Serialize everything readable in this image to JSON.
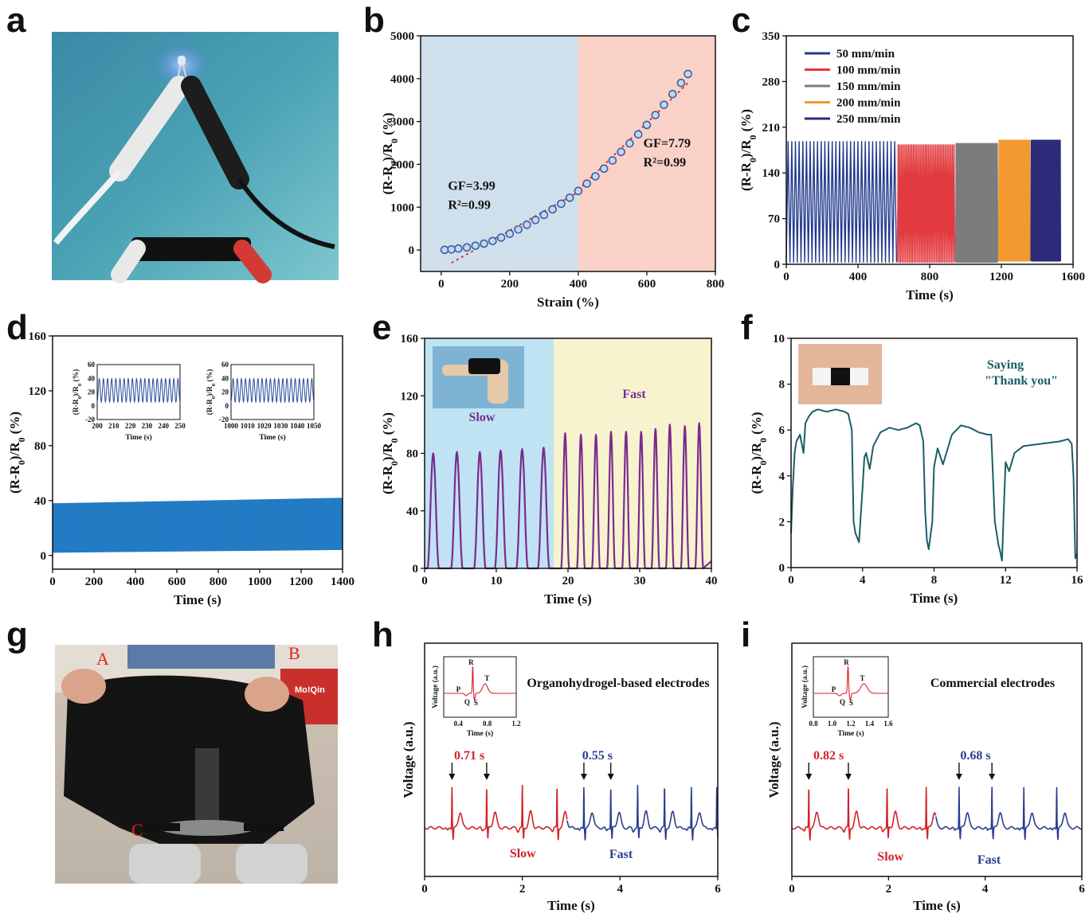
{
  "panels": {
    "a": "a",
    "b": "b",
    "c": "c",
    "d": "d",
    "e": "e",
    "f": "f",
    "g": "g",
    "h": "h",
    "i": "i"
  },
  "photo_g": {
    "label_a": "A",
    "label_b": "B",
    "label_c": "C",
    "sign_text": "Mo!Qin"
  },
  "chart_data": [
    {
      "id": "b",
      "type": "scatter",
      "xlabel": "Strain (%)",
      "ylabel": "(R-R0)/R0 (%)",
      "xlim": [
        -60,
        800
      ],
      "ylim": [
        -500,
        5000
      ],
      "xticks": [
        "0",
        "200",
        "400",
        "600",
        "800"
      ],
      "yticks": [
        "0",
        "1000",
        "2000",
        "3000",
        "4000",
        "5000"
      ],
      "regions": [
        {
          "from": -60,
          "to": 400,
          "color": "#cfe0ec"
        },
        {
          "from": 400,
          "to": 800,
          "color": "#f9d1c6"
        }
      ],
      "x": [
        10,
        30,
        50,
        75,
        100,
        125,
        150,
        175,
        200,
        225,
        250,
        275,
        300,
        325,
        350,
        375,
        400,
        425,
        450,
        475,
        500,
        525,
        550,
        575,
        600,
        625,
        650,
        675,
        700,
        720
      ],
      "y": [
        5,
        15,
        35,
        60,
        100,
        150,
        210,
        290,
        380,
        480,
        590,
        700,
        820,
        950,
        1080,
        1220,
        1380,
        1550,
        1720,
        1900,
        2090,
        2290,
        2490,
        2700,
        2920,
        3150,
        3390,
        3640,
        3900,
        4110
      ],
      "fits": [
        {
          "x": [
            30,
            400
          ],
          "y": [
            -300,
            1350
          ],
          "color": "#e0322b"
        },
        {
          "x": [
            400,
            720
          ],
          "y": [
            1400,
            3900
          ],
          "color": "#e0322b"
        }
      ],
      "annotations": [
        {
          "lines": [
            "GF=3.99",
            "R²=0.99"
          ],
          "x": 20,
          "y": 1400
        },
        {
          "lines": [
            "GF=7.79",
            "R²=0.99"
          ],
          "x": 590,
          "y": 2400
        }
      ],
      "marker_color": "#3a5ea8"
    },
    {
      "id": "c",
      "type": "line",
      "xlabel": "Time (s)",
      "ylabel": "(R-R0)/R0 (%)",
      "xlim": [
        0,
        1600
      ],
      "ylim": [
        0,
        350
      ],
      "xticks": [
        "0",
        "400",
        "800",
        "1200",
        "1600"
      ],
      "yticks": [
        "0",
        "70",
        "140",
        "210",
        "280",
        "350"
      ],
      "series": [
        {
          "name": "50 mm/min",
          "color": "#223a8c",
          "x_range": [
            0,
            615
          ],
          "cycles": 30,
          "min": 3,
          "max": 188
        },
        {
          "name": "100 mm/min",
          "color": "#e23b3f",
          "x_range": [
            620,
            940
          ],
          "cycles": 38,
          "min": 3,
          "max": 183
        },
        {
          "name": "150 mm/min",
          "color": "#7c7c7c",
          "x_range": [
            945,
            1180
          ],
          "cycles": 45,
          "min": 3,
          "max": 185
        },
        {
          "name": "200 mm/min",
          "color": "#f29a2f",
          "x_range": [
            1185,
            1360
          ],
          "cycles": 45,
          "min": 5,
          "max": 190
        },
        {
          "name": "250 mm/min",
          "color": "#2d2a7a",
          "x_range": [
            1365,
            1530
          ],
          "cycles": 50,
          "min": 5,
          "max": 190
        }
      ]
    },
    {
      "id": "d",
      "type": "line",
      "xlabel": "Time (s)",
      "ylabel": "(R-R0)/R0 (%)",
      "xlim": [
        0,
        1400
      ],
      "ylim": [
        -10,
        160
      ],
      "xticks": [
        "0",
        "200",
        "400",
        "600",
        "800",
        "1000",
        "1200",
        "1400"
      ],
      "yticks": [
        "0",
        "40",
        "80",
        "120",
        "160"
      ],
      "band": {
        "x_range": [
          0,
          1400
        ],
        "low_start": 2,
        "low_end": 4,
        "high_start": 38,
        "high_end": 42,
        "color": "#1f78c1"
      },
      "insets": [
        {
          "xlabel": "Time (s)",
          "ylabel": "(R-R0)/R0 (%)",
          "xlim": [
            200,
            250
          ],
          "ylim": [
            -20,
            60
          ],
          "xticks": [
            "200",
            "210",
            "220",
            "230",
            "240",
            "250"
          ],
          "yticks": [
            "-20",
            "0",
            "20",
            "40",
            "60"
          ],
          "cycles": 20,
          "min": 5,
          "max": 40,
          "color": "#2a4d9b"
        },
        {
          "xlabel": "Time (s)",
          "ylabel": "(R-R0)/R0 (%)",
          "xlim": [
            1000,
            1050
          ],
          "ylim": [
            -20,
            60
          ],
          "xticks": [
            "1000",
            "1010",
            "1020",
            "1030",
            "1040",
            "1050"
          ],
          "yticks": [
            "-20",
            "0",
            "20",
            "40",
            "60"
          ],
          "cycles": 20,
          "min": 5,
          "max": 40,
          "color": "#2a4d9b"
        }
      ]
    },
    {
      "id": "e",
      "type": "line",
      "xlabel": "Time (s)",
      "ylabel": "(R-R0)/R0 (%)",
      "xlim": [
        0,
        40
      ],
      "ylim": [
        0,
        160
      ],
      "xticks": [
        "0",
        "10",
        "20",
        "30",
        "40"
      ],
      "yticks": [
        "0",
        "40",
        "80",
        "120",
        "160"
      ],
      "regions": [
        {
          "from": 0,
          "to": 18,
          "color": "#bfe3f3"
        },
        {
          "from": 18,
          "to": 40,
          "color": "#f8f3cf"
        }
      ],
      "peaks_slow": {
        "x": [
          1.2,
          4.5,
          7.7,
          10.6,
          13.6,
          16.6
        ],
        "y": [
          80,
          81,
          81,
          82,
          83,
          84
        ]
      },
      "peaks_fast": {
        "x": [
          19.6,
          21.8,
          23.9,
          26.0,
          28.1,
          30.2,
          32.2,
          34.2,
          36.3,
          38.3
        ],
        "y": [
          94,
          93,
          93,
          95,
          95,
          95,
          97,
          100,
          99,
          101
        ]
      },
      "line_color": "#7a2b8e",
      "labels": [
        "Slow",
        "Fast"
      ]
    },
    {
      "id": "f",
      "type": "line",
      "xlabel": "Time (s)",
      "ylabel": "(R-R0)/R0 (%)",
      "xlim": [
        0,
        16
      ],
      "ylim": [
        0,
        10
      ],
      "xticks": [
        "0",
        "4",
        "8",
        "12",
        "16"
      ],
      "yticks": [
        "0",
        "2",
        "4",
        "6",
        "8",
        "10"
      ],
      "x": [
        0,
        0.1,
        0.2,
        0.3,
        0.5,
        0.7,
        0.8,
        1.0,
        1.2,
        1.5,
        2.0,
        2.5,
        3.0,
        3.2,
        3.4,
        3.5,
        3.6,
        3.8,
        4.0,
        4.1,
        4.2,
        4.4,
        4.6,
        5.0,
        5.5,
        6.0,
        6.5,
        7.0,
        7.2,
        7.4,
        7.5,
        7.6,
        7.7,
        7.9,
        8.0,
        8.2,
        8.5,
        9.0,
        9.5,
        10.0,
        10.5,
        11.0,
        11.2,
        11.4,
        11.6,
        11.7,
        11.8,
        11.9,
        12.0,
        12.2,
        12.5,
        13.0,
        14.0,
        15.0,
        15.5,
        15.7,
        15.8,
        15.9,
        16.0
      ],
      "y": [
        1.5,
        3.5,
        5.0,
        5.5,
        5.8,
        5.0,
        6.3,
        6.6,
        6.8,
        6.9,
        6.8,
        6.9,
        6.8,
        6.7,
        6.0,
        2.0,
        1.5,
        1.1,
        3.5,
        4.8,
        5.0,
        4.3,
        5.3,
        5.9,
        6.1,
        6.0,
        6.1,
        6.3,
        6.2,
        5.5,
        2.5,
        1.2,
        0.8,
        2.0,
        4.4,
        5.2,
        4.5,
        5.8,
        6.2,
        6.1,
        5.9,
        5.8,
        5.8,
        2.0,
        1.0,
        0.7,
        0.3,
        2.5,
        4.6,
        4.2,
        5.0,
        5.3,
        5.4,
        5.5,
        5.6,
        5.4,
        4.0,
        0.4,
        0.6
      ],
      "line_color": "#1b5e66",
      "annotation": [
        "Saying",
        "\"Thank you\""
      ]
    },
    {
      "id": "h",
      "type": "line",
      "xlabel": "Time (s)",
      "ylabel": "Voltage (a.u.)",
      "xlim": [
        0,
        6
      ],
      "xticks": [
        "0",
        "2",
        "4",
        "6"
      ],
      "slow_beats": [
        0.56,
        1.27,
        2.0,
        2.71
      ],
      "fast_beats": [
        3.26,
        3.81,
        4.36,
        4.91,
        5.46,
        5.98
      ],
      "split": 2.92,
      "slow_color": "#d2232a",
      "fast_color": "#2a3c91",
      "intervals": [
        {
          "label": "0.71 s",
          "x1": 0.56,
          "x2": 1.27,
          "color": "#d2232a"
        },
        {
          "label": "0.55 s",
          "x1": 3.26,
          "x2": 3.81,
          "color": "#2a3c91"
        }
      ],
      "labels": [
        "Slow",
        "Fast"
      ],
      "title": "Organohydrogel-based electrodes",
      "inset": {
        "xlabel": "Time (s)",
        "ylabel": "Voltage (a.u.)",
        "xlim": [
          0.2,
          1.2
        ],
        "xticks": [
          "0.4",
          "0.8",
          "1.2"
        ],
        "r_peak": 0.6,
        "wave_labels": [
          "P",
          "Q",
          "R",
          "S",
          "T"
        ]
      }
    },
    {
      "id": "i",
      "type": "line",
      "xlabel": "Time (s)",
      "ylabel": "Voltage (a.u.)",
      "xlim": [
        0,
        6
      ],
      "xticks": [
        "0",
        "2",
        "4",
        "6"
      ],
      "slow_beats": [
        0.35,
        1.17,
        1.97,
        2.78
      ],
      "fast_beats": [
        3.46,
        4.14,
        4.8,
        5.48
      ],
      "split": 2.98,
      "slow_color": "#d2232a",
      "fast_color": "#2a3c91",
      "intervals": [
        {
          "label": "0.82 s",
          "x1": 0.35,
          "x2": 1.17,
          "color": "#d2232a"
        },
        {
          "label": "0.68 s",
          "x1": 3.46,
          "x2": 4.14,
          "color": "#2a3c91"
        }
      ],
      "labels": [
        "Slow",
        "Fast"
      ],
      "title": "Commercial electrodes",
      "inset": {
        "xlabel": "Time (s)",
        "ylabel": "Voltage (a.u.)",
        "xlim": [
          0.8,
          1.6
        ],
        "xticks": [
          "0.8",
          "1.0",
          "1.2",
          "1.4",
          "1.6"
        ],
        "r_peak": 1.17,
        "wave_labels": [
          "P",
          "Q",
          "R",
          "S",
          "T"
        ]
      }
    }
  ]
}
